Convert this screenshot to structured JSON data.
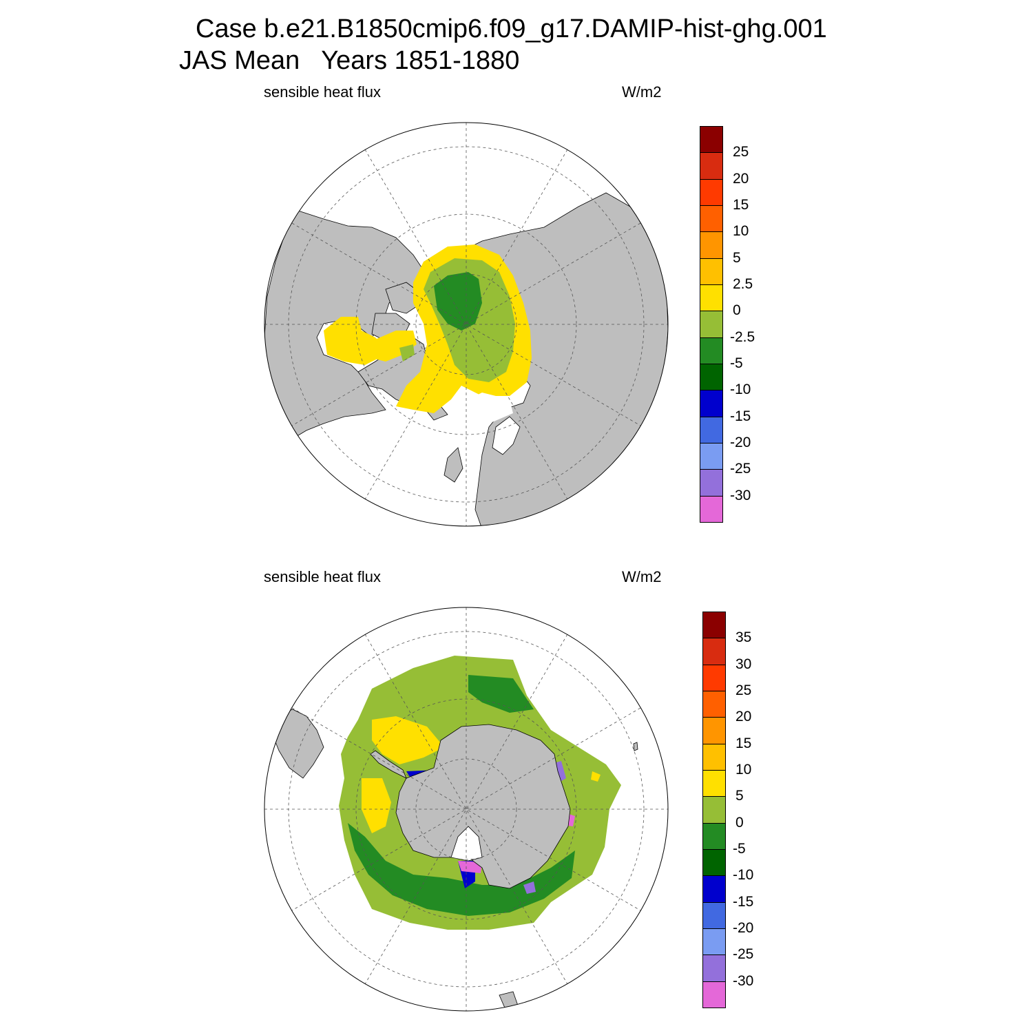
{
  "title": {
    "line1": "Case b.e21.B1850cmip6.f09_g17.DAMIP-hist-ghg.001",
    "line2": "JAS Mean   Years 1851-1880"
  },
  "colors": {
    "land": "#bebebe",
    "ocean_missing": "#ffffff",
    "grid": "#555555",
    "outline": "#000000"
  },
  "panels": [
    {
      "id": "north",
      "hemisphere": "Northern Hemisphere polar stereographic",
      "left_label": "sensible heat flux",
      "right_label": "W/m2",
      "colorbar": {
        "labels": [
          "25",
          "20",
          "15",
          "10",
          "5",
          "2.5",
          "0",
          "-2.5",
          "-5",
          "-10",
          "-15",
          "-20",
          "-25",
          "-30"
        ],
        "colors": [
          "#8b0000",
          "#d82c10",
          "#ff3a00",
          "#ff6000",
          "#ff9500",
          "#ffc000",
          "#ffe000",
          "#96be36",
          "#238b23",
          "#006400",
          "#0000cd",
          "#4169e1",
          "#7a9cf2",
          "#9370db",
          "#e468d8"
        ]
      }
    },
    {
      "id": "south",
      "hemisphere": "Southern Hemisphere polar stereographic",
      "left_label": "sensible heat flux",
      "right_label": "W/m2",
      "colorbar": {
        "labels": [
          "35",
          "30",
          "25",
          "20",
          "15",
          "10",
          "5",
          "0",
          "-5",
          "-10",
          "-15",
          "-20",
          "-25",
          "-30"
        ],
        "colors": [
          "#8b0000",
          "#d82c10",
          "#ff3a00",
          "#ff6000",
          "#ff9500",
          "#ffc000",
          "#ffe000",
          "#96be36",
          "#238b23",
          "#006400",
          "#0000cd",
          "#4169e1",
          "#7a9cf2",
          "#9370db",
          "#e468d8"
        ]
      }
    }
  ]
}
